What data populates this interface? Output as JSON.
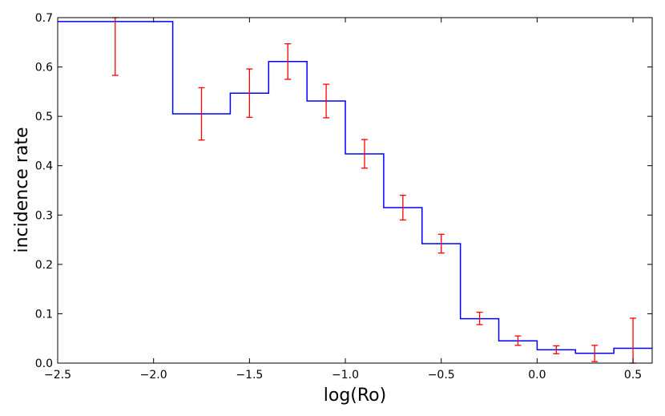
{
  "chart_data": {
    "type": "line",
    "subtype": "step-histogram-with-error-bars",
    "title": "",
    "xlabel": "log(Ro)",
    "ylabel": "incidence rate",
    "xlim": [
      -2.5,
      0.6
    ],
    "ylim": [
      0.0,
      0.7
    ],
    "grid": false,
    "colors": {
      "step": "#0000ff",
      "errorbar": "#ff0000"
    },
    "x_ticks": [
      -2.5,
      -2.0,
      -1.5,
      -1.0,
      -0.5,
      0.0,
      0.5
    ],
    "x_tick_labels": [
      "−2.5",
      "−2.0",
      "−1.5",
      "−1.0",
      "−0.5",
      "0.0",
      "0.5"
    ],
    "y_ticks": [
      0.0,
      0.1,
      0.2,
      0.3,
      0.4,
      0.5,
      0.6,
      0.7
    ],
    "y_tick_labels": [
      "0.0",
      "0.1",
      "0.2",
      "0.3",
      "0.4",
      "0.5",
      "0.6",
      "0.7"
    ],
    "bins": [
      {
        "x0": -2.5,
        "x1": -1.9,
        "value": 0.692
      },
      {
        "x0": -1.9,
        "x1": -1.6,
        "value": 0.505
      },
      {
        "x0": -1.6,
        "x1": -1.4,
        "value": 0.547
      },
      {
        "x0": -1.4,
        "x1": -1.2,
        "value": 0.611
      },
      {
        "x0": -1.2,
        "x1": -1.0,
        "value": 0.531
      },
      {
        "x0": -1.0,
        "x1": -0.8,
        "value": 0.424
      },
      {
        "x0": -0.8,
        "x1": -0.6,
        "value": 0.315
      },
      {
        "x0": -0.6,
        "x1": -0.4,
        "value": 0.242
      },
      {
        "x0": -0.4,
        "x1": -0.2,
        "value": 0.09
      },
      {
        "x0": -0.2,
        "x1": 0.0,
        "value": 0.045
      },
      {
        "x0": 0.0,
        "x1": 0.2,
        "value": 0.027
      },
      {
        "x0": 0.2,
        "x1": 0.4,
        "value": 0.02
      },
      {
        "x0": 0.4,
        "x1": 0.6,
        "value": 0.03
      }
    ],
    "error_bars": [
      {
        "x": -2.2,
        "y": 0.692,
        "low": 0.583,
        "high": 0.7
      },
      {
        "x": -1.75,
        "y": 0.505,
        "low": 0.452,
        "high": 0.558
      },
      {
        "x": -1.5,
        "y": 0.547,
        "low": 0.498,
        "high": 0.596
      },
      {
        "x": -1.3,
        "y": 0.611,
        "low": 0.575,
        "high": 0.647
      },
      {
        "x": -1.1,
        "y": 0.531,
        "low": 0.497,
        "high": 0.565
      },
      {
        "x": -0.9,
        "y": 0.424,
        "low": 0.395,
        "high": 0.453
      },
      {
        "x": -0.7,
        "y": 0.315,
        "low": 0.29,
        "high": 0.34
      },
      {
        "x": -0.5,
        "y": 0.242,
        "low": 0.223,
        "high": 0.261
      },
      {
        "x": -0.3,
        "y": 0.09,
        "low": 0.078,
        "high": 0.103
      },
      {
        "x": -0.1,
        "y": 0.045,
        "low": 0.036,
        "high": 0.055
      },
      {
        "x": 0.1,
        "y": 0.027,
        "low": 0.019,
        "high": 0.035
      },
      {
        "x": 0.3,
        "y": 0.02,
        "low": 0.003,
        "high": 0.036
      },
      {
        "x": 0.5,
        "y": 0.03,
        "low": 0.0,
        "high": 0.091
      }
    ]
  }
}
